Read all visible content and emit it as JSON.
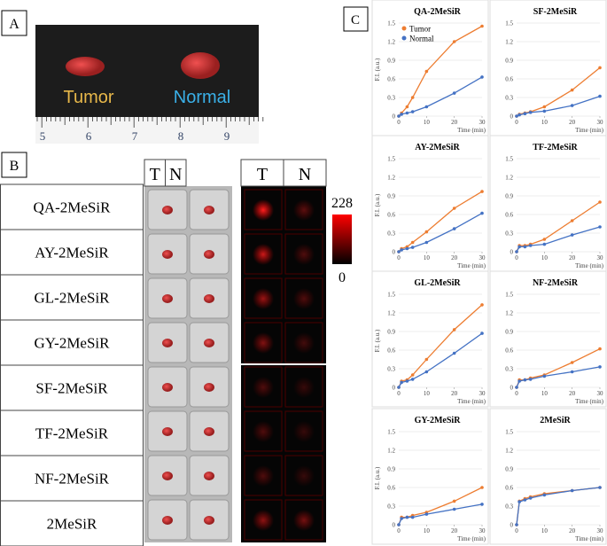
{
  "panels": {
    "a": {
      "label": "A",
      "tumor_label": "Tumor",
      "normal_label": "Normal",
      "ruler": [
        "5",
        "6",
        "7",
        "8",
        "9"
      ]
    },
    "b": {
      "label": "B",
      "rows": [
        "QA-2MeSiR",
        "AY-2MeSiR",
        "GL-2MeSiR",
        "GY-2MeSiR",
        "SF-2MeSiR",
        "TF-2MeSiR",
        "NF-2MeSiR",
        "2MeSiR"
      ],
      "columns": [
        "T",
        "N"
      ],
      "colorbar_max": "228",
      "colorbar_min": "0"
    },
    "c": {
      "label": "C"
    }
  },
  "chart_data": [
    {
      "type": "line",
      "title": "QA-2MeSiR",
      "ylabel": "F.I. (a.u.)",
      "xlabel": "Time (min)",
      "legend": true,
      "x": [
        0,
        1,
        3,
        5,
        10,
        20,
        30
      ],
      "xlim": [
        0,
        30
      ],
      "xticks": [
        0,
        10,
        20,
        30
      ],
      "ylim": [
        0,
        1.5
      ],
      "yticks": [
        0,
        0.3,
        0.6,
        0.9,
        1.2,
        1.5
      ],
      "grid": true,
      "series": [
        {
          "name": "Tumor",
          "color": "#ed7d31",
          "values": [
            0,
            0.05,
            0.15,
            0.3,
            0.72,
            1.2,
            1.45
          ]
        },
        {
          "name": "Normal",
          "color": "#4472c4",
          "values": [
            0,
            0.03,
            0.05,
            0.07,
            0.15,
            0.37,
            0.63
          ]
        }
      ]
    },
    {
      "type": "line",
      "title": "SF-2MeSiR",
      "xlabel": "Time (min)",
      "x": [
        0,
        1,
        3,
        5,
        10,
        20,
        30
      ],
      "xlim": [
        0,
        30
      ],
      "xticks": [
        0,
        10,
        20,
        30
      ],
      "ylim": [
        0,
        1.5
      ],
      "yticks": [
        0,
        0.3,
        0.6,
        0.9,
        1.2,
        1.5
      ],
      "grid": true,
      "series": [
        {
          "name": "Tumor",
          "color": "#ed7d31",
          "values": [
            0,
            0.03,
            0.05,
            0.07,
            0.15,
            0.42,
            0.78
          ]
        },
        {
          "name": "Normal",
          "color": "#4472c4",
          "values": [
            0,
            0.02,
            0.04,
            0.06,
            0.08,
            0.17,
            0.32
          ]
        }
      ]
    },
    {
      "type": "line",
      "title": "AY-2MeSiR",
      "ylabel": "F.I. (a.u.)",
      "xlabel": "Time (min)",
      "x": [
        0,
        1,
        3,
        5,
        10,
        20,
        30
      ],
      "xlim": [
        0,
        30
      ],
      "xticks": [
        0,
        10,
        20,
        30
      ],
      "ylim": [
        0,
        1.5
      ],
      "yticks": [
        0,
        0.3,
        0.6,
        0.9,
        1.2,
        1.5
      ],
      "grid": true,
      "series": [
        {
          "name": "Tumor",
          "color": "#ed7d31",
          "values": [
            0,
            0.05,
            0.08,
            0.15,
            0.32,
            0.7,
            0.97
          ]
        },
        {
          "name": "Normal",
          "color": "#4472c4",
          "values": [
            0,
            0.03,
            0.05,
            0.07,
            0.15,
            0.37,
            0.62
          ]
        }
      ]
    },
    {
      "type": "line",
      "title": "TF-2MeSiR",
      "xlabel": "Time (min)",
      "x": [
        0,
        1,
        3,
        5,
        10,
        20,
        30
      ],
      "xlim": [
        0,
        30
      ],
      "xticks": [
        0,
        10,
        20,
        30
      ],
      "ylim": [
        0,
        1.5
      ],
      "yticks": [
        0,
        0.3,
        0.6,
        0.9,
        1.2,
        1.5
      ],
      "grid": true,
      "series": [
        {
          "name": "Tumor",
          "color": "#ed7d31",
          "values": [
            0,
            0.1,
            0.1,
            0.12,
            0.2,
            0.5,
            0.8
          ]
        },
        {
          "name": "Normal",
          "color": "#4472c4",
          "values": [
            0,
            0.08,
            0.08,
            0.1,
            0.12,
            0.27,
            0.4
          ]
        }
      ]
    },
    {
      "type": "line",
      "title": "GL-2MeSiR",
      "ylabel": "F.I. (a.u.)",
      "xlabel": "Time (min)",
      "x": [
        0,
        1,
        3,
        5,
        10,
        20,
        30
      ],
      "xlim": [
        0,
        30
      ],
      "xticks": [
        0,
        10,
        20,
        30
      ],
      "ylim": [
        0,
        1.5
      ],
      "yticks": [
        0,
        0.3,
        0.6,
        0.9,
        1.2,
        1.5
      ],
      "grid": true,
      "series": [
        {
          "name": "Tumor",
          "color": "#ed7d31",
          "values": [
            0,
            0.1,
            0.12,
            0.2,
            0.45,
            0.93,
            1.33
          ]
        },
        {
          "name": "Normal",
          "color": "#4472c4",
          "values": [
            0,
            0.08,
            0.1,
            0.13,
            0.25,
            0.55,
            0.87
          ]
        }
      ]
    },
    {
      "type": "line",
      "title": "NF-2MeSiR",
      "xlabel": "Time (min)",
      "x": [
        0,
        1,
        3,
        5,
        10,
        20,
        30
      ],
      "xlim": [
        0,
        30
      ],
      "xticks": [
        0,
        10,
        20,
        30
      ],
      "ylim": [
        0,
        1.5
      ],
      "yticks": [
        0,
        0.3,
        0.6,
        0.9,
        1.2,
        1.5
      ],
      "grid": true,
      "series": [
        {
          "name": "Tumor",
          "color": "#ed7d31",
          "values": [
            0,
            0.12,
            0.12,
            0.15,
            0.2,
            0.4,
            0.62
          ]
        },
        {
          "name": "Normal",
          "color": "#4472c4",
          "values": [
            0,
            0.1,
            0.12,
            0.13,
            0.18,
            0.25,
            0.33
          ]
        }
      ]
    },
    {
      "type": "line",
      "title": "GY-2MeSiR",
      "ylabel": "F.I. (a.u.)",
      "xlabel": "Time (min)",
      "x": [
        0,
        1,
        3,
        5,
        10,
        20,
        30
      ],
      "xlim": [
        0,
        30
      ],
      "xticks": [
        0,
        10,
        20,
        30
      ],
      "ylim": [
        0,
        1.5
      ],
      "yticks": [
        0,
        0.3,
        0.6,
        0.9,
        1.2,
        1.5
      ],
      "grid": true,
      "series": [
        {
          "name": "Tumor",
          "color": "#ed7d31",
          "values": [
            0,
            0.12,
            0.12,
            0.15,
            0.2,
            0.38,
            0.6
          ]
        },
        {
          "name": "Normal",
          "color": "#4472c4",
          "values": [
            0,
            0.1,
            0.12,
            0.12,
            0.17,
            0.25,
            0.33
          ]
        }
      ]
    },
    {
      "type": "line",
      "title": "2MeSiR",
      "xlabel": "Time (min)",
      "x": [
        0,
        1,
        3,
        5,
        10,
        20,
        30
      ],
      "xlim": [
        0,
        30
      ],
      "xticks": [
        0,
        10,
        20,
        30
      ],
      "ylim": [
        0,
        1.5
      ],
      "yticks": [
        0,
        0.3,
        0.6,
        0.9,
        1.2,
        1.5
      ],
      "grid": true,
      "series": [
        {
          "name": "Tumor",
          "color": "#ed7d31",
          "values": [
            0,
            0.38,
            0.42,
            0.45,
            0.5,
            0.55,
            0.6
          ]
        },
        {
          "name": "Normal",
          "color": "#4472c4",
          "values": [
            0,
            0.37,
            0.4,
            0.43,
            0.48,
            0.55,
            0.6
          ]
        }
      ]
    }
  ]
}
